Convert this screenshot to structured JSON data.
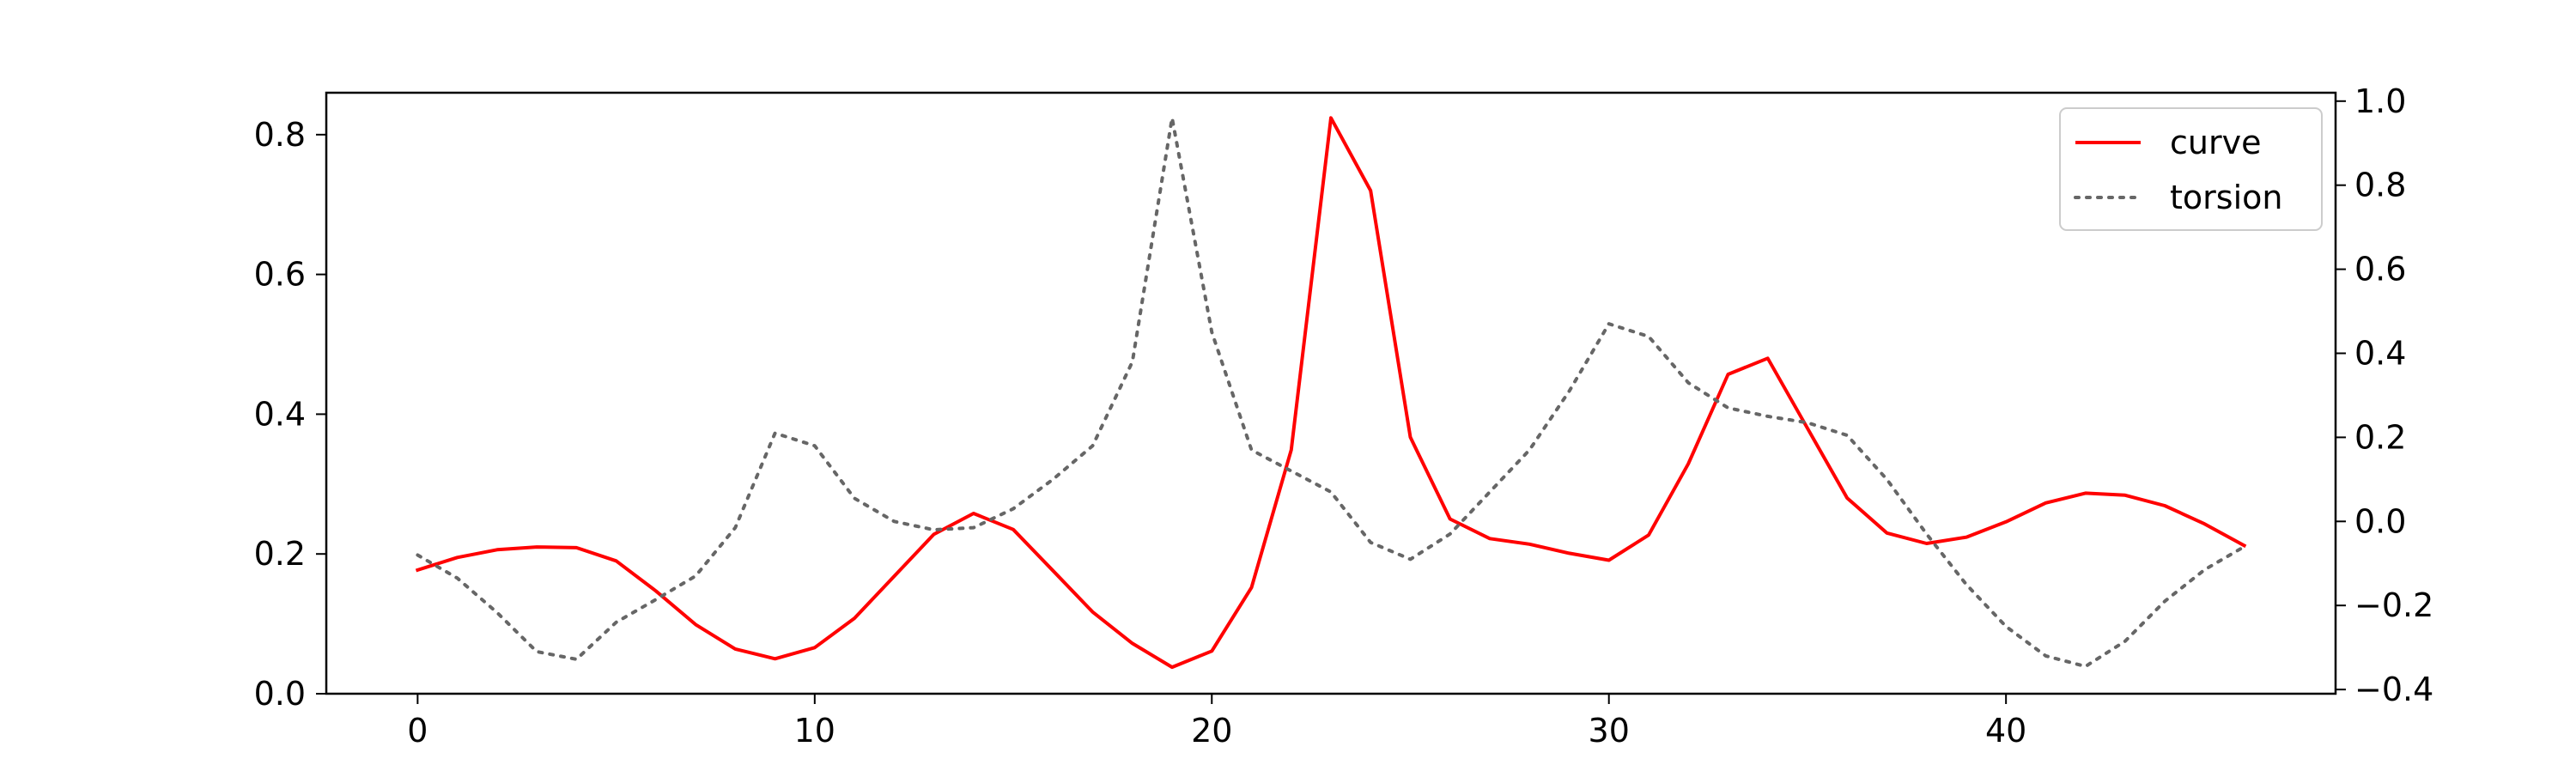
{
  "chart_data": {
    "type": "line",
    "title": "",
    "xlabel": "",
    "ylabel": "",
    "y2label": "",
    "xlim": [
      -2.3,
      48.3
    ],
    "ylim": [
      0,
      0.86
    ],
    "y2lim": [
      -0.41,
      1.02
    ],
    "x_ticks": [
      0,
      10,
      20,
      30,
      40
    ],
    "x_tick_labels": [
      "0",
      "10",
      "20",
      "30",
      "40"
    ],
    "y_ticks": [
      0.0,
      0.2,
      0.4,
      0.6,
      0.8
    ],
    "y_tick_labels": [
      "0.0",
      "0.2",
      "0.4",
      "0.6",
      "0.8"
    ],
    "y2_ticks": [
      -0.4,
      -0.2,
      0.0,
      0.2,
      0.4,
      0.6,
      0.8,
      1.0
    ],
    "y2_tick_labels": [
      "−0.4",
      "−0.2",
      "0.0",
      "0.2",
      "0.4",
      "0.6",
      "0.8",
      "1.0"
    ],
    "grid": false,
    "legend_position": "top-right",
    "x": [
      0,
      1,
      2,
      3,
      4,
      5,
      6,
      7,
      8,
      9,
      10,
      11,
      12,
      13,
      14,
      15,
      16,
      17,
      18,
      19,
      20,
      21,
      22,
      23,
      24,
      25,
      26,
      27,
      28,
      29,
      30,
      31,
      32,
      33,
      34,
      35,
      36,
      37,
      38,
      39,
      40,
      41,
      42,
      43,
      44,
      45,
      46
    ],
    "series": [
      {
        "name": "curve",
        "axis": "left",
        "color": "#ff0000",
        "style": "solid",
        "values": [
          0.177,
          0.195,
          0.206,
          0.21,
          0.209,
          0.19,
          0.147,
          0.099,
          0.064,
          0.05,
          0.066,
          0.108,
          0.168,
          0.228,
          0.258,
          0.235,
          0.176,
          0.117,
          0.072,
          0.038,
          0.061,
          0.152,
          0.349,
          0.824,
          0.72,
          0.367,
          0.25,
          0.222,
          0.214,
          0.201,
          0.191,
          0.227,
          0.329,
          0.457,
          0.48,
          0.38,
          0.28,
          0.23,
          0.215,
          0.224,
          0.246,
          0.273,
          0.287,
          0.284,
          0.269,
          0.243,
          0.212
        ]
      },
      {
        "name": "torsion",
        "axis": "right",
        "color": "#666666",
        "style": "dotted",
        "values": [
          -0.08,
          -0.135,
          -0.217,
          -0.31,
          -0.328,
          -0.24,
          -0.186,
          -0.13,
          -0.015,
          0.21,
          0.18,
          0.055,
          0.0,
          -0.02,
          -0.015,
          0.03,
          0.1,
          0.18,
          0.38,
          0.96,
          0.45,
          0.17,
          0.12,
          0.07,
          -0.05,
          -0.09,
          -0.03,
          0.07,
          0.17,
          0.31,
          0.47,
          0.44,
          0.33,
          0.27,
          0.25,
          0.235,
          0.205,
          0.1,
          -0.03,
          -0.15,
          -0.25,
          -0.32,
          -0.345,
          -0.285,
          -0.19,
          -0.115,
          -0.06
        ]
      }
    ]
  }
}
